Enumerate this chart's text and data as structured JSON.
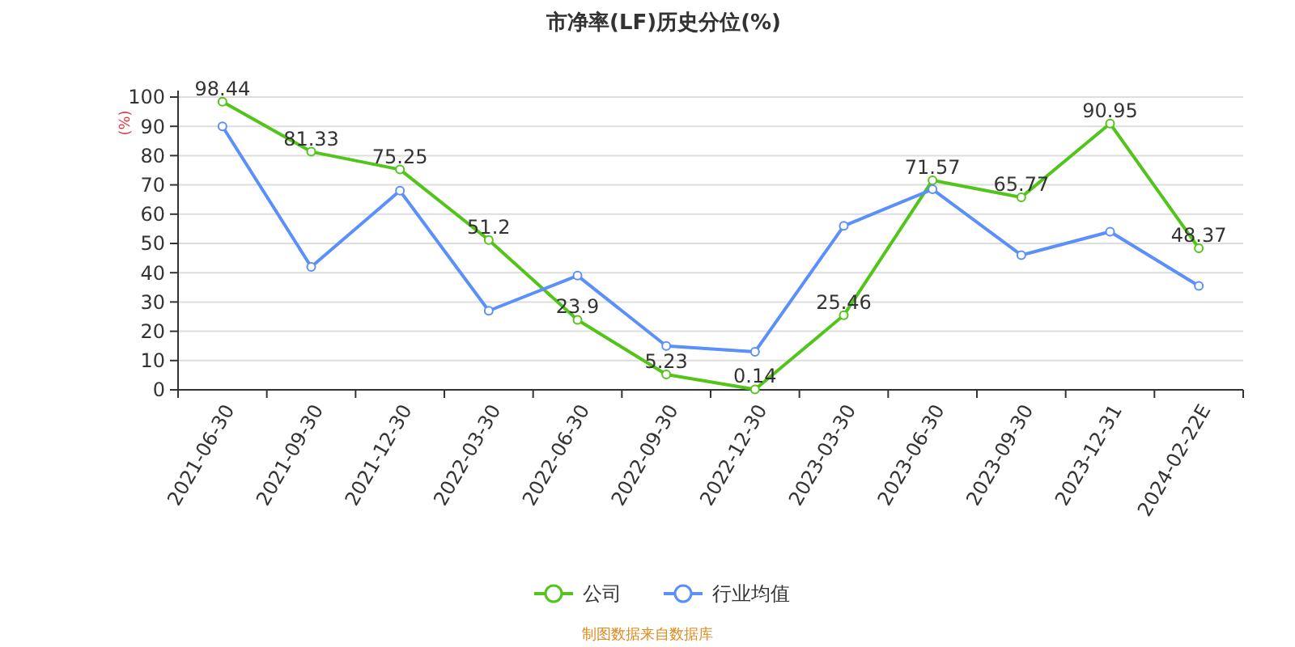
{
  "chart_data": {
    "type": "line",
    "title": "市净率(LF)历史分位(%)",
    "ylabel": "(%)",
    "categories": [
      "2021-06-30",
      "2021-09-30",
      "2021-12-30",
      "2022-03-30",
      "2022-06-30",
      "2022-09-30",
      "2022-12-30",
      "2023-03-30",
      "2023-06-30",
      "2023-09-30",
      "2023-12-31",
      "2024-02-22E"
    ],
    "series": [
      {
        "name": "公司",
        "color": "#52c41a",
        "values": [
          98.44,
          81.33,
          75.25,
          51.2,
          23.9,
          5.23,
          0.14,
          25.46,
          71.57,
          65.77,
          90.95,
          48.37
        ],
        "value_labels": [
          "98.44",
          "81.33",
          "75.25",
          "51.2",
          "23.9",
          "5.23",
          "0.14",
          "25.46",
          "71.57",
          "65.77",
          "90.95",
          "48.37"
        ]
      },
      {
        "name": "行业均值",
        "color": "#5b8ff9",
        "values": [
          90,
          42,
          68,
          27,
          39,
          15,
          13,
          56,
          68.5,
          46,
          54,
          35.5
        ]
      }
    ],
    "ylim": [
      0,
      100
    ],
    "yticks": [
      0,
      10,
      20,
      30,
      40,
      50,
      60,
      70,
      80,
      90,
      100
    ],
    "grid": "y",
    "legend": "bottom",
    "marker": "circle",
    "line_style": "solid",
    "annotations": [
      "制图数据来自数据库"
    ]
  }
}
